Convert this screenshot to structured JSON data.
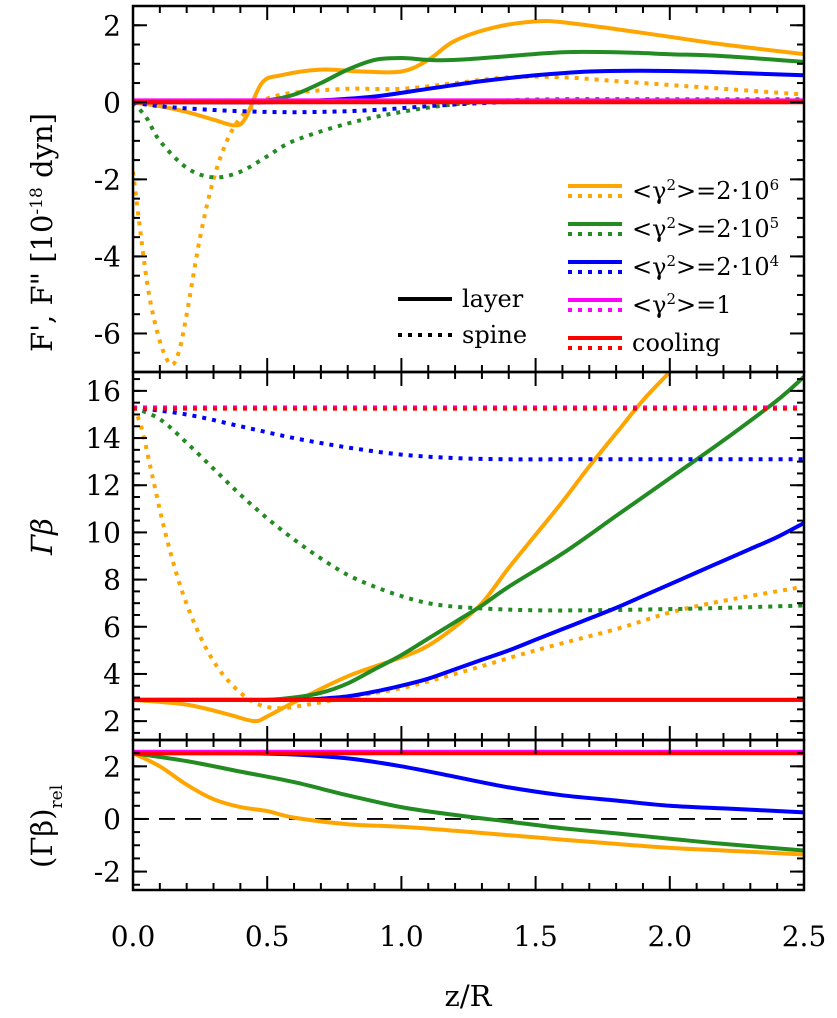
{
  "chart_data": [
    {
      "type": "line",
      "panel": "top",
      "ylabel_main": "F', F\" [10",
      "ylabel_exp": "-18",
      "ylabel_unit": " dyn]",
      "xlim": [
        0,
        2.5
      ],
      "ylim": [
        -7,
        2.5
      ],
      "yticks": [
        2,
        0,
        -2,
        -4,
        -6
      ],
      "ytick_labels": [
        "2",
        "0",
        "-2",
        "-4",
        "-6"
      ],
      "legend_series": [
        {
          "label_prefix": "<γ",
          "label_sup": "2",
          "label_mid": ">=2·10",
          "label_exp": "6",
          "color": "#ffa500"
        },
        {
          "label_prefix": "<γ",
          "label_sup": "2",
          "label_mid": ">=2·10",
          "label_exp": "5",
          "color": "#228b22"
        },
        {
          "label_prefix": "<γ",
          "label_sup": "2",
          "label_mid": ">=2·10",
          "label_exp": "4",
          "color": "#0000ff"
        },
        {
          "label_prefix": "<γ",
          "label_sup": "2",
          "label_mid": ">=1",
          "label_exp": "",
          "color": "#ff00ff"
        },
        {
          "label_prefix": "cooling",
          "label_sup": "",
          "label_mid": "",
          "label_exp": "",
          "color": "#ff0000"
        }
      ],
      "legend_styles": [
        {
          "label": "layer",
          "style": "solid"
        },
        {
          "label": "spine",
          "style": "dotted"
        }
      ],
      "series": [
        {
          "name": "layer 2e6",
          "color": "#ffa500",
          "style": "solid",
          "x": [
            0,
            0.1,
            0.2,
            0.3,
            0.38,
            0.42,
            0.48,
            0.55,
            0.7,
            0.85,
            1.0,
            1.1,
            1.2,
            1.35,
            1.5,
            1.6,
            1.8,
            2.0,
            2.2,
            2.5
          ],
          "y": [
            0,
            -0.1,
            -0.25,
            -0.45,
            -0.6,
            -0.4,
            0.5,
            0.7,
            0.85,
            0.8,
            0.8,
            1.1,
            1.6,
            1.95,
            2.1,
            2.08,
            1.9,
            1.7,
            1.5,
            1.25
          ]
        },
        {
          "name": "spine 2e6",
          "color": "#ffa500",
          "style": "dotted",
          "x": [
            0,
            0.03,
            0.06,
            0.1,
            0.14,
            0.17,
            0.2,
            0.25,
            0.3,
            0.35,
            0.4,
            0.45,
            0.5,
            0.6,
            0.8,
            1.0,
            1.2,
            1.4,
            1.6,
            1.8,
            2.0,
            2.2,
            2.5
          ],
          "y": [
            -1.8,
            -3.5,
            -5.0,
            -6.2,
            -6.8,
            -6.5,
            -5.5,
            -3.5,
            -2.0,
            -1.0,
            -0.4,
            -0.1,
            0.1,
            0.25,
            0.35,
            0.35,
            0.5,
            0.65,
            0.65,
            0.55,
            0.45,
            0.35,
            0.2
          ]
        },
        {
          "name": "layer 2e5",
          "color": "#228b22",
          "style": "solid",
          "x": [
            0,
            0.2,
            0.4,
            0.5,
            0.6,
            0.7,
            0.8,
            0.9,
            1.0,
            1.1,
            1.2,
            1.4,
            1.6,
            1.8,
            2.0,
            2.2,
            2.5
          ],
          "y": [
            0,
            0,
            0,
            0.05,
            0.2,
            0.5,
            0.85,
            1.1,
            1.15,
            1.1,
            1.1,
            1.2,
            1.3,
            1.3,
            1.25,
            1.2,
            1.05
          ]
        },
        {
          "name": "spine 2e5",
          "color": "#228b22",
          "style": "dotted",
          "x": [
            0,
            0.05,
            0.1,
            0.2,
            0.3,
            0.4,
            0.5,
            0.6,
            0.8,
            1.0,
            1.2,
            1.4,
            1.6,
            2.0,
            2.5
          ],
          "y": [
            0,
            -0.4,
            -1.0,
            -1.7,
            -1.95,
            -1.8,
            -1.4,
            -1.0,
            -0.55,
            -0.25,
            -0.05,
            0.05,
            0.08,
            0.08,
            0.08
          ]
        },
        {
          "name": "layer 2e4",
          "color": "#0000ff",
          "style": "solid",
          "x": [
            0,
            0.3,
            0.5,
            0.7,
            0.9,
            1.1,
            1.3,
            1.5,
            1.7,
            1.9,
            2.1,
            2.3,
            2.5
          ],
          "y": [
            0,
            0,
            0,
            0.05,
            0.15,
            0.35,
            0.55,
            0.7,
            0.8,
            0.82,
            0.8,
            0.75,
            0.7
          ]
        },
        {
          "name": "spine 2e4",
          "color": "#0000ff",
          "style": "dotted",
          "x": [
            0,
            0.1,
            0.3,
            0.5,
            0.7,
            0.9,
            1.1,
            1.3,
            1.5,
            2.0,
            2.5
          ],
          "y": [
            0,
            -0.1,
            -0.2,
            -0.25,
            -0.25,
            -0.2,
            -0.1,
            -0.02,
            0.02,
            0.03,
            0.03
          ]
        },
        {
          "name": "layer 1",
          "color": "#ff00ff",
          "style": "solid",
          "x": [
            0,
            2.5
          ],
          "y": [
            0.05,
            0.05
          ]
        },
        {
          "name": "cooling",
          "color": "#ff0000",
          "style": "solid",
          "x": [
            0,
            2.5
          ],
          "y": [
            0,
            0
          ]
        }
      ]
    },
    {
      "type": "line",
      "panel": "middle",
      "ylabel": "Γβ",
      "xlim": [
        0,
        2.5
      ],
      "ylim": [
        1.2,
        16.8
      ],
      "yticks": [
        16,
        14,
        12,
        10,
        8,
        6,
        4,
        2
      ],
      "ytick_labels": [
        "16",
        "14",
        "12",
        "10",
        "8",
        "6",
        "4",
        "2"
      ],
      "series": [
        {
          "name": "layer 2e6",
          "color": "#ffa500",
          "style": "solid",
          "x": [
            0,
            0.2,
            0.35,
            0.45,
            0.5,
            0.6,
            0.8,
            1.0,
            1.1,
            1.2,
            1.3,
            1.4,
            1.5,
            1.6,
            1.7,
            1.8,
            1.9,
            2.0
          ],
          "y": [
            2.9,
            2.7,
            2.3,
            2.0,
            2.2,
            2.8,
            3.9,
            4.7,
            5.2,
            6.0,
            7.0,
            8.5,
            9.9,
            11.3,
            12.8,
            14.2,
            15.6,
            16.8
          ]
        },
        {
          "name": "spine 2e6",
          "color": "#ffa500",
          "style": "dotted",
          "x": [
            0,
            0.03,
            0.07,
            0.12,
            0.18,
            0.25,
            0.32,
            0.4,
            0.47,
            0.55,
            0.65,
            0.8,
            1.0,
            1.2,
            1.5,
            1.8,
            2.0,
            2.2,
            2.5
          ],
          "y": [
            15.3,
            14.5,
            12.5,
            10.0,
            7.6,
            5.6,
            4.2,
            3.2,
            2.7,
            2.55,
            2.7,
            3.0,
            3.4,
            4.0,
            5.0,
            5.9,
            6.6,
            7.1,
            7.7
          ]
        },
        {
          "name": "layer 2e5",
          "color": "#228b22",
          "style": "solid",
          "x": [
            0,
            0.4,
            0.5,
            0.6,
            0.7,
            0.8,
            0.9,
            1.0,
            1.1,
            1.2,
            1.3,
            1.4,
            1.6,
            1.8,
            2.0,
            2.2,
            2.4,
            2.5
          ],
          "y": [
            2.9,
            2.9,
            2.9,
            3.0,
            3.2,
            3.6,
            4.2,
            4.8,
            5.5,
            6.2,
            6.9,
            7.7,
            9.1,
            10.7,
            12.3,
            13.9,
            15.6,
            16.6
          ]
        },
        {
          "name": "spine 2e5",
          "color": "#228b22",
          "style": "dotted",
          "x": [
            0,
            0.1,
            0.2,
            0.3,
            0.4,
            0.5,
            0.6,
            0.7,
            0.8,
            0.9,
            1.0,
            1.1,
            1.2,
            1.35,
            1.5,
            1.7,
            2.0,
            2.2,
            2.5
          ],
          "y": [
            15.3,
            14.8,
            13.8,
            12.7,
            11.6,
            10.6,
            9.7,
            8.9,
            8.2,
            7.7,
            7.3,
            7.0,
            6.85,
            6.75,
            6.7,
            6.7,
            6.75,
            6.8,
            6.9
          ]
        },
        {
          "name": "layer 2e4",
          "color": "#0000ff",
          "style": "solid",
          "x": [
            0,
            0.5,
            0.6,
            0.7,
            0.8,
            0.9,
            1.0,
            1.1,
            1.2,
            1.3,
            1.4,
            1.5,
            1.6,
            1.7,
            1.8,
            1.9,
            2.0,
            2.1,
            2.2,
            2.3,
            2.4,
            2.5
          ],
          "y": [
            2.9,
            2.9,
            2.9,
            2.95,
            3.05,
            3.25,
            3.5,
            3.8,
            4.2,
            4.6,
            5.0,
            5.45,
            5.9,
            6.35,
            6.8,
            7.3,
            7.8,
            8.3,
            8.8,
            9.3,
            9.8,
            10.4
          ]
        },
        {
          "name": "spine 2e4",
          "color": "#0000ff",
          "style": "dotted",
          "x": [
            0,
            0.2,
            0.4,
            0.6,
            0.8,
            1.0,
            1.2,
            1.4,
            1.6,
            2.0,
            2.5
          ],
          "y": [
            15.3,
            15.0,
            14.5,
            14.0,
            13.6,
            13.3,
            13.15,
            13.1,
            13.1,
            13.1,
            13.1
          ]
        },
        {
          "name": "layer 1",
          "color": "#ff00ff",
          "style": "solid",
          "x": [
            0,
            2.5
          ],
          "y": [
            2.9,
            2.9
          ]
        },
        {
          "name": "spine 1",
          "color": "#ff00ff",
          "style": "dotted",
          "x": [
            0,
            2.5
          ],
          "y": [
            15.3,
            15.3
          ]
        },
        {
          "name": "cooling layer",
          "color": "#ff0000",
          "style": "solid",
          "x": [
            0,
            2.5
          ],
          "y": [
            2.9,
            2.9
          ]
        },
        {
          "name": "cooling spine",
          "color": "#ff0000",
          "style": "dotted",
          "x": [
            0,
            2.5
          ],
          "y": [
            15.25,
            15.25
          ]
        }
      ]
    },
    {
      "type": "line",
      "panel": "bottom",
      "ylabel_main": "(Γβ)",
      "ylabel_sub": "rel",
      "xlabel": "z/R",
      "xlim": [
        0,
        2.5
      ],
      "ylim": [
        -2.7,
        3.0
      ],
      "yticks": [
        2,
        0,
        -2
      ],
      "ytick_labels": [
        "2",
        "0",
        "-2"
      ],
      "xticks": [
        0.0,
        0.5,
        1.0,
        1.5,
        2.0,
        2.5
      ],
      "xtick_labels": [
        "0.0",
        "0.5",
        "1.0",
        "1.5",
        "2.0",
        "2.5"
      ],
      "series": [
        {
          "name": "layer 2e6",
          "color": "#ffa500",
          "style": "solid",
          "x": [
            0,
            0.1,
            0.2,
            0.3,
            0.4,
            0.5,
            0.6,
            0.8,
            1.0,
            1.2,
            1.5,
            1.8,
            2.0,
            2.2,
            2.5
          ],
          "y": [
            2.5,
            2.0,
            1.3,
            0.75,
            0.45,
            0.3,
            0.05,
            -0.2,
            -0.3,
            -0.45,
            -0.7,
            -0.95,
            -1.1,
            -1.2,
            -1.35
          ]
        },
        {
          "name": "layer 2e5",
          "color": "#228b22",
          "style": "solid",
          "x": [
            0,
            0.2,
            0.4,
            0.6,
            0.8,
            1.0,
            1.2,
            1.4,
            1.6,
            1.8,
            2.0,
            2.2,
            2.5
          ],
          "y": [
            2.5,
            2.2,
            1.8,
            1.4,
            0.9,
            0.45,
            0.15,
            -0.1,
            -0.35,
            -0.55,
            -0.75,
            -0.95,
            -1.2
          ]
        },
        {
          "name": "layer 2e4",
          "color": "#0000ff",
          "style": "solid",
          "x": [
            0,
            0.4,
            0.6,
            0.8,
            1.0,
            1.2,
            1.4,
            1.6,
            1.8,
            2.0,
            2.2,
            2.5
          ],
          "y": [
            2.5,
            2.5,
            2.45,
            2.3,
            2.0,
            1.6,
            1.2,
            0.9,
            0.7,
            0.5,
            0.4,
            0.25
          ]
        },
        {
          "name": "layer 1",
          "color": "#ff00ff",
          "style": "solid",
          "x": [
            0,
            2.5
          ],
          "y": [
            2.55,
            2.55
          ]
        },
        {
          "name": "cooling",
          "color": "#ff0000",
          "style": "solid",
          "x": [
            0,
            2.5
          ],
          "y": [
            2.5,
            2.5
          ]
        }
      ],
      "reference_line": {
        "y": 0,
        "style": "dashed",
        "color": "#000000"
      }
    }
  ]
}
